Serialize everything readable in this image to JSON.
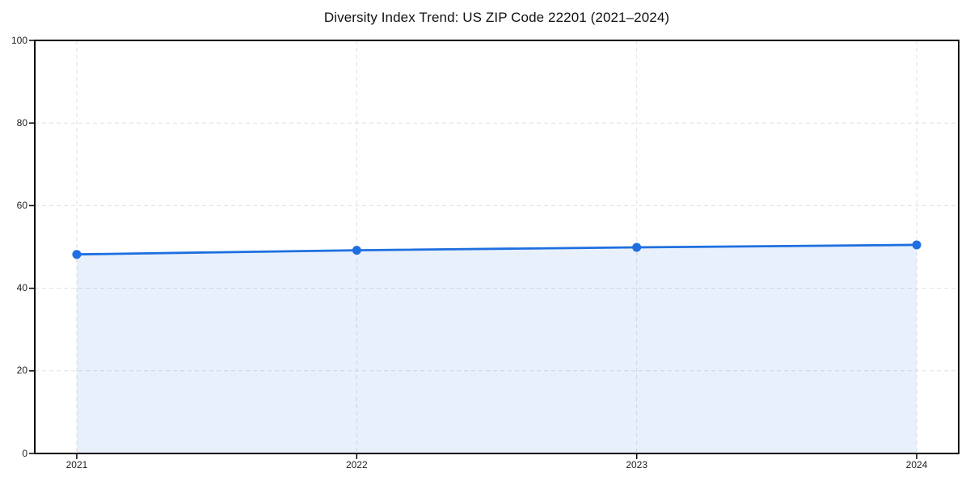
{
  "title": "Diversity Index Trend: US ZIP Code 22201 (2021–2024)",
  "chart_data": {
    "type": "area",
    "x": [
      2021,
      2022,
      2023,
      2024
    ],
    "series": [
      {
        "name": "Diversity Index",
        "values": [
          48.2,
          49.2,
          49.9,
          50.5
        ]
      }
    ],
    "title": "Diversity Index Trend: US ZIP Code 22201 (2021–2024)",
    "xlabel": "",
    "ylabel": "",
    "xlim": [
      2020.85,
      2024.15
    ],
    "ylim": [
      0,
      100
    ],
    "xticks": [
      2021,
      2022,
      2023,
      2024
    ],
    "yticks": [
      0,
      20,
      40,
      60,
      80,
      100
    ],
    "grid": true,
    "grid_style": "dashed",
    "legend_position": "none",
    "marker": "circle"
  },
  "colors": {
    "line": "#1e6fe0",
    "fill_opacity": 0.1,
    "grid": "#e0e0e0",
    "axis": "#000000",
    "tick_text": "#1c1c1c",
    "title_text": "#111111",
    "background": "#ffffff"
  }
}
